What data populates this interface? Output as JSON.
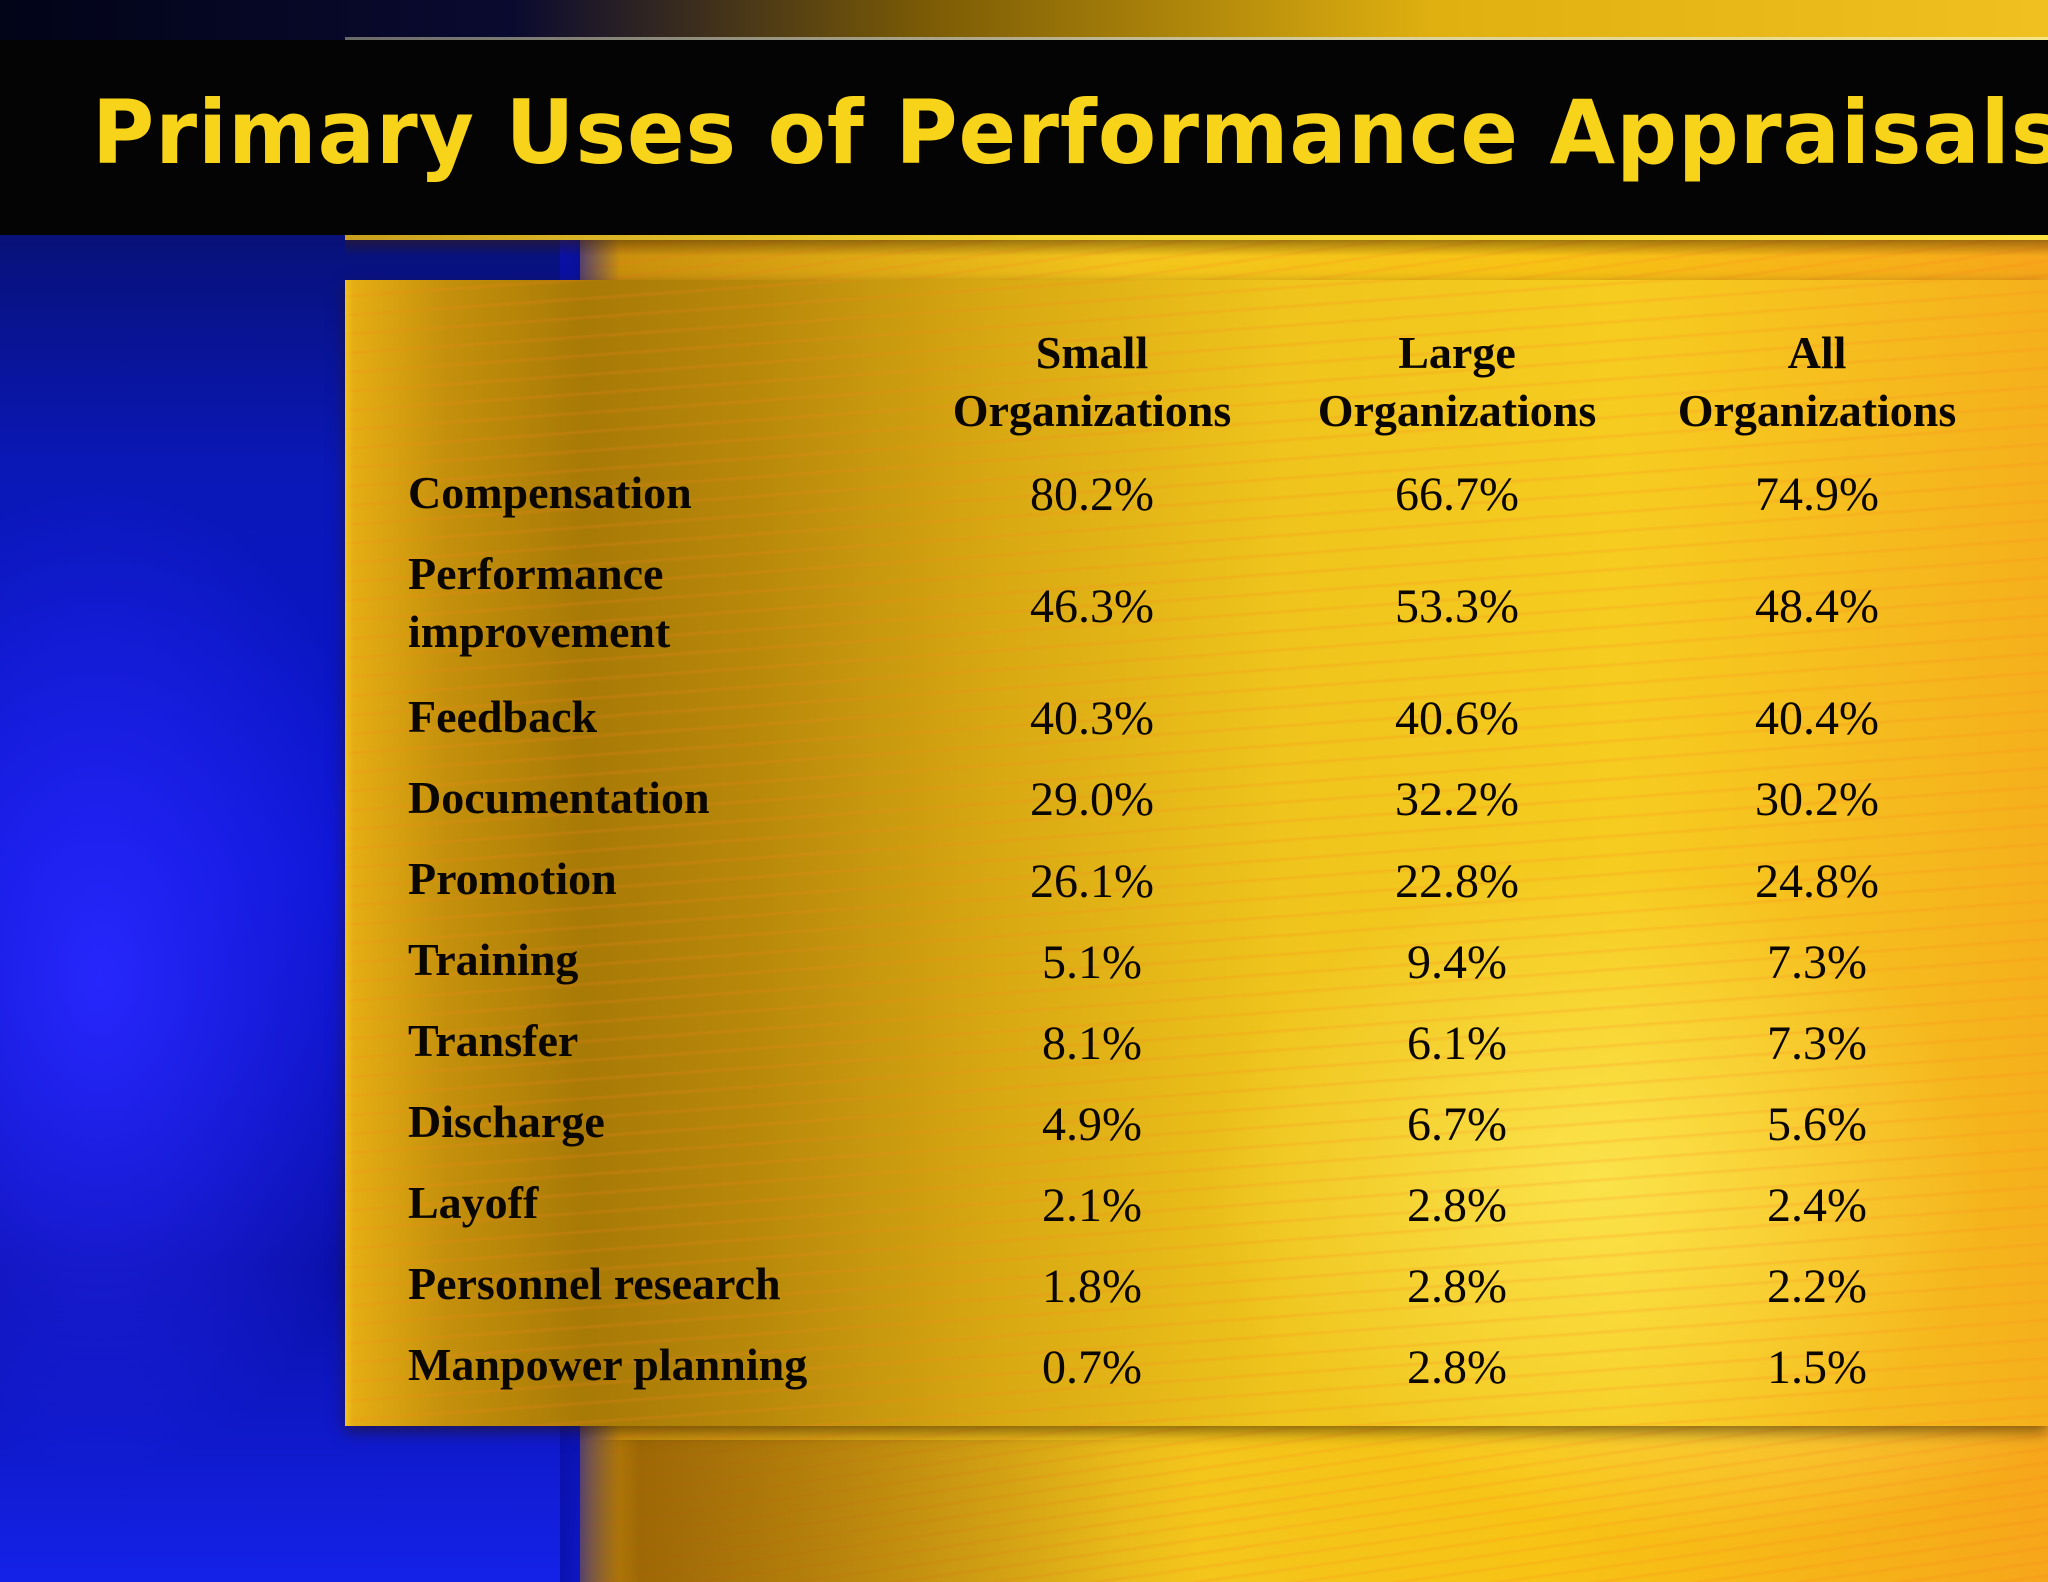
{
  "title": "Primary Uses of Performance Appraisals",
  "table": {
    "columns": [
      {
        "line1": "Small",
        "line2": "Organizations"
      },
      {
        "line1": "Large",
        "line2": "Organizations"
      },
      {
        "line1": "All",
        "line2": "Organizations"
      }
    ],
    "rows": [
      {
        "label": "Compensation",
        "small": "80.2%",
        "large": "66.7%",
        "all": "74.9%"
      },
      {
        "label_line1": "Performance",
        "label_line2": "improvement",
        "small": "46.3%",
        "large": "53.3%",
        "all": "48.4%"
      },
      {
        "label": "Feedback",
        "small": "40.3%",
        "large": "40.6%",
        "all": "40.4%"
      },
      {
        "label": "Documentation",
        "small": "29.0%",
        "large": "32.2%",
        "all": "30.2%"
      },
      {
        "label": "Promotion",
        "small": "26.1%",
        "large": "22.8%",
        "all": "24.8%"
      },
      {
        "label": "Training",
        "small": "5.1%",
        "large": "9.4%",
        "all": "7.3%"
      },
      {
        "label": "Transfer",
        "small": "8.1%",
        "large": "6.1%",
        "all": "7.3%"
      },
      {
        "label": "Discharge",
        "small": "4.9%",
        "large": "6.7%",
        "all": "5.6%"
      },
      {
        "label": "Layoff",
        "small": "2.1%",
        "large": "2.8%",
        "all": "2.4%"
      },
      {
        "label": "Personnel research",
        "small": "1.8%",
        "large": "2.8%",
        "all": "2.2%"
      },
      {
        "label": "Manpower planning",
        "small": "0.7%",
        "large": "2.8%",
        "all": "1.5%"
      }
    ]
  },
  "colors": {
    "title_text": "#f7d31a",
    "title_bar": "#050404",
    "panel_gold": "#efc41c",
    "side_blue": "#0b14d0",
    "table_text": "#0a0600"
  }
}
